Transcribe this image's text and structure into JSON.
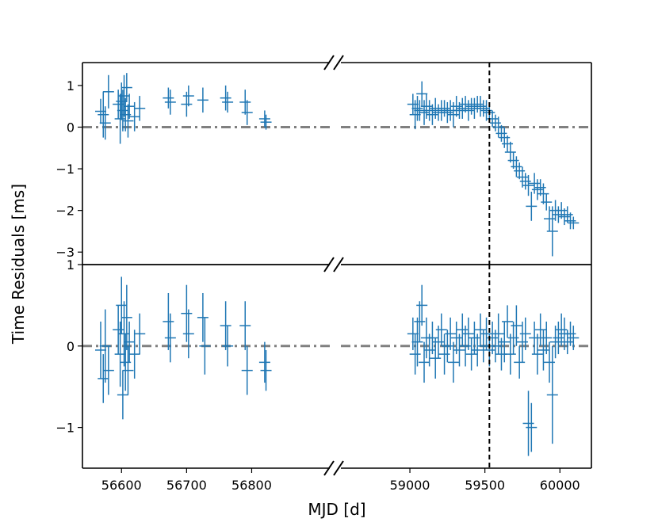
{
  "chart_data": {
    "type": "scatter",
    "x_break": true,
    "shared_x_label": "MJD [d]",
    "shared_y_label": "Time Residuals [ms]",
    "x_left_range": [
      56540,
      56920
    ],
    "x_right_range": [
      58540,
      60210
    ],
    "x_left_ticks": [
      "56600",
      "56700",
      "56800"
    ],
    "x_left_tick_values": [
      56600,
      56700,
      56800
    ],
    "x_right_ticks": [
      "59000",
      "59500",
      "60000"
    ],
    "x_right_tick_values": [
      59000,
      59500,
      60000
    ],
    "vline_mjd": 59530,
    "series_color": "#1f77b4",
    "ref_line_color": "#808080",
    "panels": [
      {
        "name": "top",
        "ylim": [
          -3.3,
          1.55
        ],
        "y_ticks": [
          "1",
          "0",
          "−1",
          "−2",
          "−3"
        ],
        "y_tick_values": [
          1,
          0,
          -1,
          -2,
          -3
        ],
        "reference_line_y": 0,
        "points_left": [
          {
            "x": 56568,
            "y": 0.38,
            "err": 0.3
          },
          {
            "x": 56572,
            "y": 0.3,
            "err": 0.55
          },
          {
            "x": 56575,
            "y": 0.1,
            "err": 0.4
          },
          {
            "x": 56580,
            "y": 0.85,
            "err": 0.4
          },
          {
            "x": 56595,
            "y": 0.55,
            "err": 0.35
          },
          {
            "x": 56598,
            "y": 0.2,
            "err": 0.6
          },
          {
            "x": 56600,
            "y": 0.62,
            "err": 0.45
          },
          {
            "x": 56602,
            "y": 0.4,
            "err": 0.5
          },
          {
            "x": 56604,
            "y": 0.75,
            "err": 0.5
          },
          {
            "x": 56606,
            "y": 0.3,
            "err": 0.4
          },
          {
            "x": 56608,
            "y": 0.95,
            "err": 0.35
          },
          {
            "x": 56610,
            "y": 0.15,
            "err": 0.4
          },
          {
            "x": 56612,
            "y": 0.5,
            "err": 0.3
          },
          {
            "x": 56620,
            "y": 0.25,
            "err": 0.35
          },
          {
            "x": 56628,
            "y": 0.45,
            "err": 0.3
          },
          {
            "x": 56672,
            "y": 0.7,
            "err": 0.25
          },
          {
            "x": 56675,
            "y": 0.6,
            "err": 0.3
          },
          {
            "x": 56700,
            "y": 0.55,
            "err": 0.3
          },
          {
            "x": 56703,
            "y": 0.75,
            "err": 0.25
          },
          {
            "x": 56725,
            "y": 0.65,
            "err": 0.3
          },
          {
            "x": 56760,
            "y": 0.7,
            "err": 0.3
          },
          {
            "x": 56763,
            "y": 0.6,
            "err": 0.25
          },
          {
            "x": 56790,
            "y": 0.6,
            "err": 0.3
          },
          {
            "x": 56793,
            "y": 0.35,
            "err": 0.3
          },
          {
            "x": 56820,
            "y": 0.2,
            "err": 0.2
          },
          {
            "x": 56822,
            "y": 0.12,
            "err": 0.18
          }
        ],
        "points_right": [
          {
            "x": 59020,
            "y": 0.55,
            "err": 0.25
          },
          {
            "x": 59035,
            "y": 0.3,
            "err": 0.35
          },
          {
            "x": 59050,
            "y": 0.45,
            "err": 0.3
          },
          {
            "x": 59065,
            "y": 0.4,
            "err": 0.25
          },
          {
            "x": 59080,
            "y": 0.8,
            "err": 0.3
          },
          {
            "x": 59095,
            "y": 0.35,
            "err": 0.3
          },
          {
            "x": 59110,
            "y": 0.5,
            "err": 0.3
          },
          {
            "x": 59130,
            "y": 0.4,
            "err": 0.25
          },
          {
            "x": 59150,
            "y": 0.3,
            "err": 0.25
          },
          {
            "x": 59170,
            "y": 0.45,
            "err": 0.25
          },
          {
            "x": 59190,
            "y": 0.35,
            "err": 0.2
          },
          {
            "x": 59210,
            "y": 0.4,
            "err": 0.25
          },
          {
            "x": 59230,
            "y": 0.45,
            "err": 0.2
          },
          {
            "x": 59250,
            "y": 0.35,
            "err": 0.25
          },
          {
            "x": 59270,
            "y": 0.4,
            "err": 0.25
          },
          {
            "x": 59290,
            "y": 0.3,
            "err": 0.3
          },
          {
            "x": 59310,
            "y": 0.5,
            "err": 0.25
          },
          {
            "x": 59330,
            "y": 0.4,
            "err": 0.2
          },
          {
            "x": 59350,
            "y": 0.45,
            "err": 0.25
          },
          {
            "x": 59370,
            "y": 0.55,
            "err": 0.2
          },
          {
            "x": 59390,
            "y": 0.4,
            "err": 0.25
          },
          {
            "x": 59410,
            "y": 0.5,
            "err": 0.2
          },
          {
            "x": 59430,
            "y": 0.45,
            "err": 0.25
          },
          {
            "x": 59450,
            "y": 0.55,
            "err": 0.2
          },
          {
            "x": 59470,
            "y": 0.5,
            "err": 0.25
          },
          {
            "x": 59490,
            "y": 0.45,
            "err": 0.2
          },
          {
            "x": 59510,
            "y": 0.4,
            "err": 0.25
          },
          {
            "x": 59530,
            "y": 0.35,
            "err": 0.2
          },
          {
            "x": 59550,
            "y": 0.2,
            "err": 0.2
          },
          {
            "x": 59570,
            "y": 0.1,
            "err": 0.2
          },
          {
            "x": 59590,
            "y": 0.0,
            "err": 0.25
          },
          {
            "x": 59610,
            "y": -0.15,
            "err": 0.2
          },
          {
            "x": 59630,
            "y": -0.25,
            "err": 0.25
          },
          {
            "x": 59650,
            "y": -0.4,
            "err": 0.2
          },
          {
            "x": 59670,
            "y": -0.6,
            "err": 0.25
          },
          {
            "x": 59690,
            "y": -0.8,
            "err": 0.2
          },
          {
            "x": 59710,
            "y": -0.95,
            "err": 0.25
          },
          {
            "x": 59730,
            "y": -1.05,
            "err": 0.2
          },
          {
            "x": 59750,
            "y": -1.2,
            "err": 0.25
          },
          {
            "x": 59770,
            "y": -1.3,
            "err": 0.2
          },
          {
            "x": 59790,
            "y": -1.4,
            "err": 0.25
          },
          {
            "x": 59810,
            "y": -1.9,
            "err": 0.35
          },
          {
            "x": 59830,
            "y": -1.35,
            "err": 0.25
          },
          {
            "x": 59850,
            "y": -1.5,
            "err": 0.25
          },
          {
            "x": 59870,
            "y": -1.45,
            "err": 0.2
          },
          {
            "x": 59890,
            "y": -1.6,
            "err": 0.25
          },
          {
            "x": 59910,
            "y": -1.8,
            "err": 0.2
          },
          {
            "x": 59930,
            "y": -2.2,
            "err": 0.3
          },
          {
            "x": 59950,
            "y": -2.5,
            "err": 0.6
          },
          {
            "x": 59970,
            "y": -2.0,
            "err": 0.25
          },
          {
            "x": 59990,
            "y": -2.1,
            "err": 0.2
          },
          {
            "x": 60010,
            "y": -2.0,
            "err": 0.2
          },
          {
            "x": 60030,
            "y": -2.15,
            "err": 0.2
          },
          {
            "x": 60050,
            "y": -2.1,
            "err": 0.2
          },
          {
            "x": 60070,
            "y": -2.25,
            "err": 0.2
          },
          {
            "x": 60090,
            "y": -2.3,
            "err": 0.15
          }
        ]
      },
      {
        "name": "bottom",
        "ylim": [
          -1.5,
          1.0
        ],
        "y_ticks": [
          "1",
          "0",
          "−1"
        ],
        "y_tick_values": [
          1,
          0,
          -1
        ],
        "reference_line_y": 0,
        "points_left": [
          {
            "x": 56568,
            "y": -0.05,
            "err": 0.35
          },
          {
            "x": 56572,
            "y": -0.4,
            "err": 0.3
          },
          {
            "x": 56575,
            "y": 0.0,
            "err": 0.45
          },
          {
            "x": 56580,
            "y": -0.3,
            "err": 0.3
          },
          {
            "x": 56595,
            "y": 0.2,
            "err": 0.3
          },
          {
            "x": 56598,
            "y": -0.1,
            "err": 0.4
          },
          {
            "x": 56600,
            "y": 0.5,
            "err": 0.35
          },
          {
            "x": 56602,
            "y": -0.6,
            "err": 0.3
          },
          {
            "x": 56604,
            "y": 0.15,
            "err": 0.4
          },
          {
            "x": 56606,
            "y": -0.2,
            "err": 0.35
          },
          {
            "x": 56608,
            "y": 0.35,
            "err": 0.4
          },
          {
            "x": 56610,
            "y": -0.3,
            "err": 0.3
          },
          {
            "x": 56612,
            "y": 0.05,
            "err": 0.25
          },
          {
            "x": 56620,
            "y": -0.1,
            "err": 0.3
          },
          {
            "x": 56628,
            "y": 0.15,
            "err": 0.25
          },
          {
            "x": 56672,
            "y": 0.3,
            "err": 0.35
          },
          {
            "x": 56675,
            "y": 0.1,
            "err": 0.3
          },
          {
            "x": 56700,
            "y": 0.4,
            "err": 0.35
          },
          {
            "x": 56703,
            "y": 0.15,
            "err": 0.3
          },
          {
            "x": 56725,
            "y": 0.35,
            "err": 0.3
          },
          {
            "x": 56728,
            "y": 0.0,
            "err": 0.35
          },
          {
            "x": 56760,
            "y": 0.25,
            "err": 0.3
          },
          {
            "x": 56763,
            "y": 0.0,
            "err": 0.25
          },
          {
            "x": 56790,
            "y": 0.25,
            "err": 0.3
          },
          {
            "x": 56793,
            "y": -0.3,
            "err": 0.3
          },
          {
            "x": 56820,
            "y": -0.2,
            "err": 0.25
          },
          {
            "x": 56822,
            "y": -0.3,
            "err": 0.25
          }
        ],
        "points_right": [
          {
            "x": 59020,
            "y": 0.15,
            "err": 0.2
          },
          {
            "x": 59035,
            "y": -0.1,
            "err": 0.25
          },
          {
            "x": 59050,
            "y": 0.05,
            "err": 0.3
          },
          {
            "x": 59065,
            "y": 0.3,
            "err": 0.25
          },
          {
            "x": 59080,
            "y": 0.5,
            "err": 0.25
          },
          {
            "x": 59095,
            "y": -0.2,
            "err": 0.25
          },
          {
            "x": 59110,
            "y": 0.1,
            "err": 0.25
          },
          {
            "x": 59130,
            "y": -0.05,
            "err": 0.2
          },
          {
            "x": 59150,
            "y": 0.1,
            "err": 0.2
          },
          {
            "x": 59170,
            "y": -0.15,
            "err": 0.25
          },
          {
            "x": 59190,
            "y": 0.05,
            "err": 0.2
          },
          {
            "x": 59210,
            "y": 0.2,
            "err": 0.2
          },
          {
            "x": 59230,
            "y": -0.1,
            "err": 0.25
          },
          {
            "x": 59250,
            "y": 0.0,
            "err": 0.2
          },
          {
            "x": 59270,
            "y": 0.15,
            "err": 0.2
          },
          {
            "x": 59290,
            "y": -0.2,
            "err": 0.25
          },
          {
            "x": 59310,
            "y": 0.1,
            "err": 0.2
          },
          {
            "x": 59330,
            "y": -0.05,
            "err": 0.2
          },
          {
            "x": 59350,
            "y": 0.2,
            "err": 0.2
          },
          {
            "x": 59370,
            "y": 0.0,
            "err": 0.25
          },
          {
            "x": 59390,
            "y": 0.15,
            "err": 0.2
          },
          {
            "x": 59410,
            "y": -0.1,
            "err": 0.2
          },
          {
            "x": 59430,
            "y": 0.1,
            "err": 0.2
          },
          {
            "x": 59450,
            "y": -0.05,
            "err": 0.2
          },
          {
            "x": 59470,
            "y": 0.2,
            "err": 0.2
          },
          {
            "x": 59490,
            "y": 0.0,
            "err": 0.2
          },
          {
            "x": 59510,
            "y": 0.15,
            "err": 0.2
          },
          {
            "x": 59530,
            "y": -0.05,
            "err": 0.2
          },
          {
            "x": 59550,
            "y": 0.1,
            "err": 0.2
          },
          {
            "x": 59570,
            "y": 0.0,
            "err": 0.2
          },
          {
            "x": 59590,
            "y": 0.15,
            "err": 0.25
          },
          {
            "x": 59610,
            "y": -0.1,
            "err": 0.2
          },
          {
            "x": 59630,
            "y": 0.05,
            "err": 0.25
          },
          {
            "x": 59650,
            "y": 0.3,
            "err": 0.2
          },
          {
            "x": 59670,
            "y": -0.1,
            "err": 0.25
          },
          {
            "x": 59690,
            "y": 0.1,
            "err": 0.2
          },
          {
            "x": 59710,
            "y": 0.25,
            "err": 0.25
          },
          {
            "x": 59730,
            "y": -0.2,
            "err": 0.2
          },
          {
            "x": 59750,
            "y": 0.05,
            "err": 0.25
          },
          {
            "x": 59770,
            "y": 0.15,
            "err": 0.2
          },
          {
            "x": 59790,
            "y": -0.95,
            "err": 0.4
          },
          {
            "x": 59810,
            "y": -1.0,
            "err": 0.3
          },
          {
            "x": 59830,
            "y": 0.1,
            "err": 0.2
          },
          {
            "x": 59850,
            "y": -0.1,
            "err": 0.25
          },
          {
            "x": 59870,
            "y": 0.2,
            "err": 0.2
          },
          {
            "x": 59890,
            "y": -0.05,
            "err": 0.25
          },
          {
            "x": 59910,
            "y": 0.1,
            "err": 0.2
          },
          {
            "x": 59930,
            "y": -0.2,
            "err": 0.25
          },
          {
            "x": 59950,
            "y": -0.6,
            "err": 0.6
          },
          {
            "x": 59970,
            "y": 0.05,
            "err": 0.2
          },
          {
            "x": 59990,
            "y": 0.1,
            "err": 0.2
          },
          {
            "x": 60010,
            "y": 0.2,
            "err": 0.2
          },
          {
            "x": 60030,
            "y": 0.15,
            "err": 0.2
          },
          {
            "x": 60050,
            "y": 0.05,
            "err": 0.15
          },
          {
            "x": 60070,
            "y": 0.15,
            "err": 0.15
          },
          {
            "x": 60090,
            "y": 0.1,
            "err": 0.15
          }
        ]
      }
    ]
  }
}
